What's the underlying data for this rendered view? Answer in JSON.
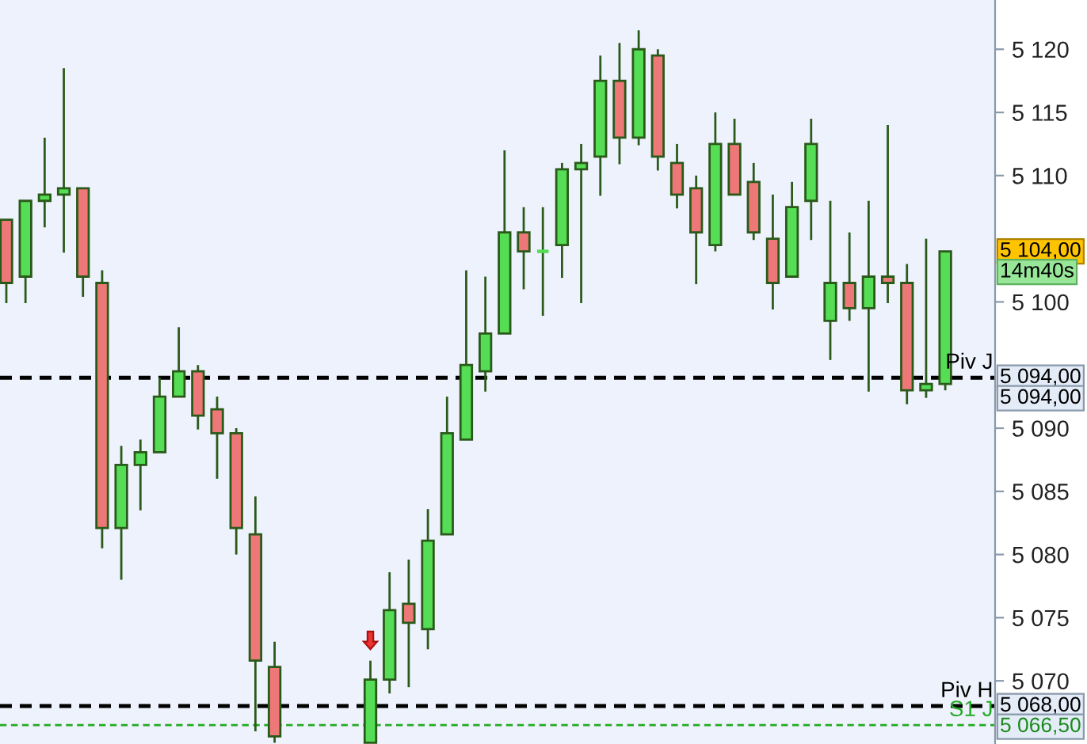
{
  "chart_data": {
    "type": "candlestick",
    "categories": [
      null,
      null,
      null,
      null,
      null,
      null,
      null,
      null,
      null,
      null,
      null,
      null,
      null,
      null,
      null,
      null,
      null,
      null,
      null,
      null,
      null,
      null,
      null,
      null,
      null,
      null,
      null,
      null,
      null,
      null,
      null,
      null,
      null,
      null,
      null,
      null,
      null,
      null,
      null,
      null,
      null,
      null,
      null,
      null,
      null,
      null,
      null,
      null,
      null,
      null
    ],
    "ohlc": [
      [
        5106.5,
        5106.5,
        5099.9,
        5101.5
      ],
      [
        5102.0,
        5108.0,
        5099.9,
        5108.0
      ],
      [
        5108.0,
        5113.0,
        5105.9,
        5108.5
      ],
      [
        5108.5,
        5118.5,
        5103.9,
        5109.0
      ],
      [
        5109.0,
        5109.0,
        5100.4,
        5102.0
      ],
      [
        5101.5,
        5102.5,
        5080.5,
        5082.1
      ],
      [
        5082.1,
        5088.6,
        5078.0,
        5087.1
      ],
      [
        5087.1,
        5089.1,
        5083.5,
        5088.1
      ],
      [
        5088.1,
        5094.0,
        5088.1,
        5092.5
      ],
      [
        5092.5,
        5098.0,
        5092.5,
        5094.5
      ],
      [
        5094.5,
        5095.0,
        5089.9,
        5091.0
      ],
      [
        5091.5,
        5092.5,
        5086.0,
        5089.6
      ],
      [
        5089.6,
        5090.0,
        5080.0,
        5082.1
      ],
      [
        5081.6,
        5084.6,
        5066.0,
        5071.6
      ],
      [
        5071.1,
        5073.1,
        5065.1,
        5065.6
      ],
      null,
      null,
      null,
      null,
      [
        5065.1,
        5071.6,
        5065.1,
        5070.1
      ],
      [
        5070.1,
        5078.6,
        5069.0,
        5075.6
      ],
      [
        5076.1,
        5079.6,
        5069.5,
        5074.6
      ],
      [
        5074.1,
        5083.6,
        5072.5,
        5081.1
      ],
      [
        5081.6,
        5092.5,
        5081.6,
        5089.6
      ],
      [
        5089.1,
        5102.5,
        5089.1,
        5095.0
      ],
      [
        5094.5,
        5102.0,
        5092.9,
        5097.5
      ],
      [
        5097.5,
        5112.0,
        5097.5,
        5105.5
      ],
      [
        5105.5,
        5107.5,
        5101.0,
        5104.0
      ],
      [
        5104.0,
        5107.5,
        5098.9,
        5104.0
      ],
      [
        5104.5,
        5111.0,
        5101.9,
        5110.5
      ],
      [
        5110.5,
        5112.5,
        5099.9,
        5111.0
      ],
      [
        5111.5,
        5119.5,
        5108.4,
        5117.5
      ],
      [
        5117.5,
        5120.5,
        5110.9,
        5113.0
      ],
      [
        5113.0,
        5121.5,
        5112.4,
        5120.0
      ],
      [
        5119.5,
        5120.0,
        5110.4,
        5111.5
      ],
      [
        5111.0,
        5112.5,
        5107.4,
        5108.5
      ],
      [
        5109.0,
        5110.0,
        5101.4,
        5105.5
      ],
      [
        5104.5,
        5115.0,
        5104.0,
        5112.5
      ],
      [
        5112.5,
        5114.5,
        5108.5,
        5108.5
      ],
      [
        5109.5,
        5111.0,
        5104.9,
        5105.5
      ],
      [
        5105.0,
        5108.5,
        5099.4,
        5101.5
      ],
      [
        5102.0,
        5109.5,
        5102.0,
        5107.5
      ],
      [
        5108.0,
        5114.5,
        5104.9,
        5112.5
      ],
      [
        5098.5,
        5108.0,
        5095.4,
        5101.5
      ],
      [
        5101.5,
        5105.5,
        5098.5,
        5099.5
      ],
      [
        5099.5,
        5108.0,
        5092.9,
        5102.0
      ],
      [
        5102.0,
        5114.0,
        5099.9,
        5101.5
      ],
      [
        5101.5,
        5103.0,
        5091.9,
        5093.0
      ],
      [
        5093.0,
        5105.0,
        5092.4,
        5093.5
      ],
      [
        5093.5,
        5104.0,
        5093.0,
        5104.0
      ]
    ],
    "colors": [
      "#ee7777",
      "#55dd55",
      "#55dd55",
      "#55dd55",
      "#ee7777",
      "#ee7777",
      "#55dd55",
      "#55dd55",
      "#55dd55",
      "#55dd55",
      "#ee7777",
      "#ee7777",
      "#ee7777",
      "#ee7777",
      "#ee7777",
      null,
      null,
      null,
      null,
      "#55dd55",
      "#55dd55",
      "#ee7777",
      "#55dd55",
      "#55dd55",
      "#55dd55",
      "#55dd55",
      "#55dd55",
      "#ee7777",
      "#55dd55",
      "#55dd55",
      "#55dd55",
      "#55dd55",
      "#ee7777",
      "#55dd55",
      "#ee7777",
      "#ee7777",
      "#ee7777",
      "#55dd55",
      "#ee7777",
      "#ee7777",
      "#ee7777",
      "#55dd55",
      "#55dd55",
      "#55dd55",
      "#ee7777",
      "#55dd55",
      "#ee7777",
      "#ee7777",
      "#55dd55",
      "#55dd55"
    ],
    "ylim": [
      5065.0,
      5123.9
    ],
    "yticks": [
      {
        "value": 5070,
        "label": "5 070"
      },
      {
        "value": 5075,
        "label": "5 075"
      },
      {
        "value": 5080,
        "label": "5 080"
      },
      {
        "value": 5085,
        "label": "5 085"
      },
      {
        "value": 5090,
        "label": "5 090"
      },
      {
        "value": 5100,
        "label": "5 100"
      },
      {
        "value": 5110,
        "label": "5 110"
      },
      {
        "value": 5115,
        "label": "5 115"
      },
      {
        "value": 5120,
        "label": "5 120"
      }
    ],
    "tick_labels": "y",
    "grid": false,
    "ref_lines": [
      {
        "axis": "y",
        "value": 5094,
        "label": "Piv J",
        "color": "#000000",
        "line_style": "dashed"
      },
      {
        "axis": "y",
        "value": 5068,
        "label": "Piv H",
        "color": "#000000",
        "line_style": "dashed"
      },
      {
        "axis": "y",
        "value": 5066.5,
        "label": "S1 J",
        "color": "#22aa22",
        "line_style": "dashed"
      }
    ],
    "annotations": [
      "5 104,00",
      "14m40s",
      "5 094,00",
      "5 094,00",
      "5 068,00",
      "5 066,50"
    ]
  }
}
